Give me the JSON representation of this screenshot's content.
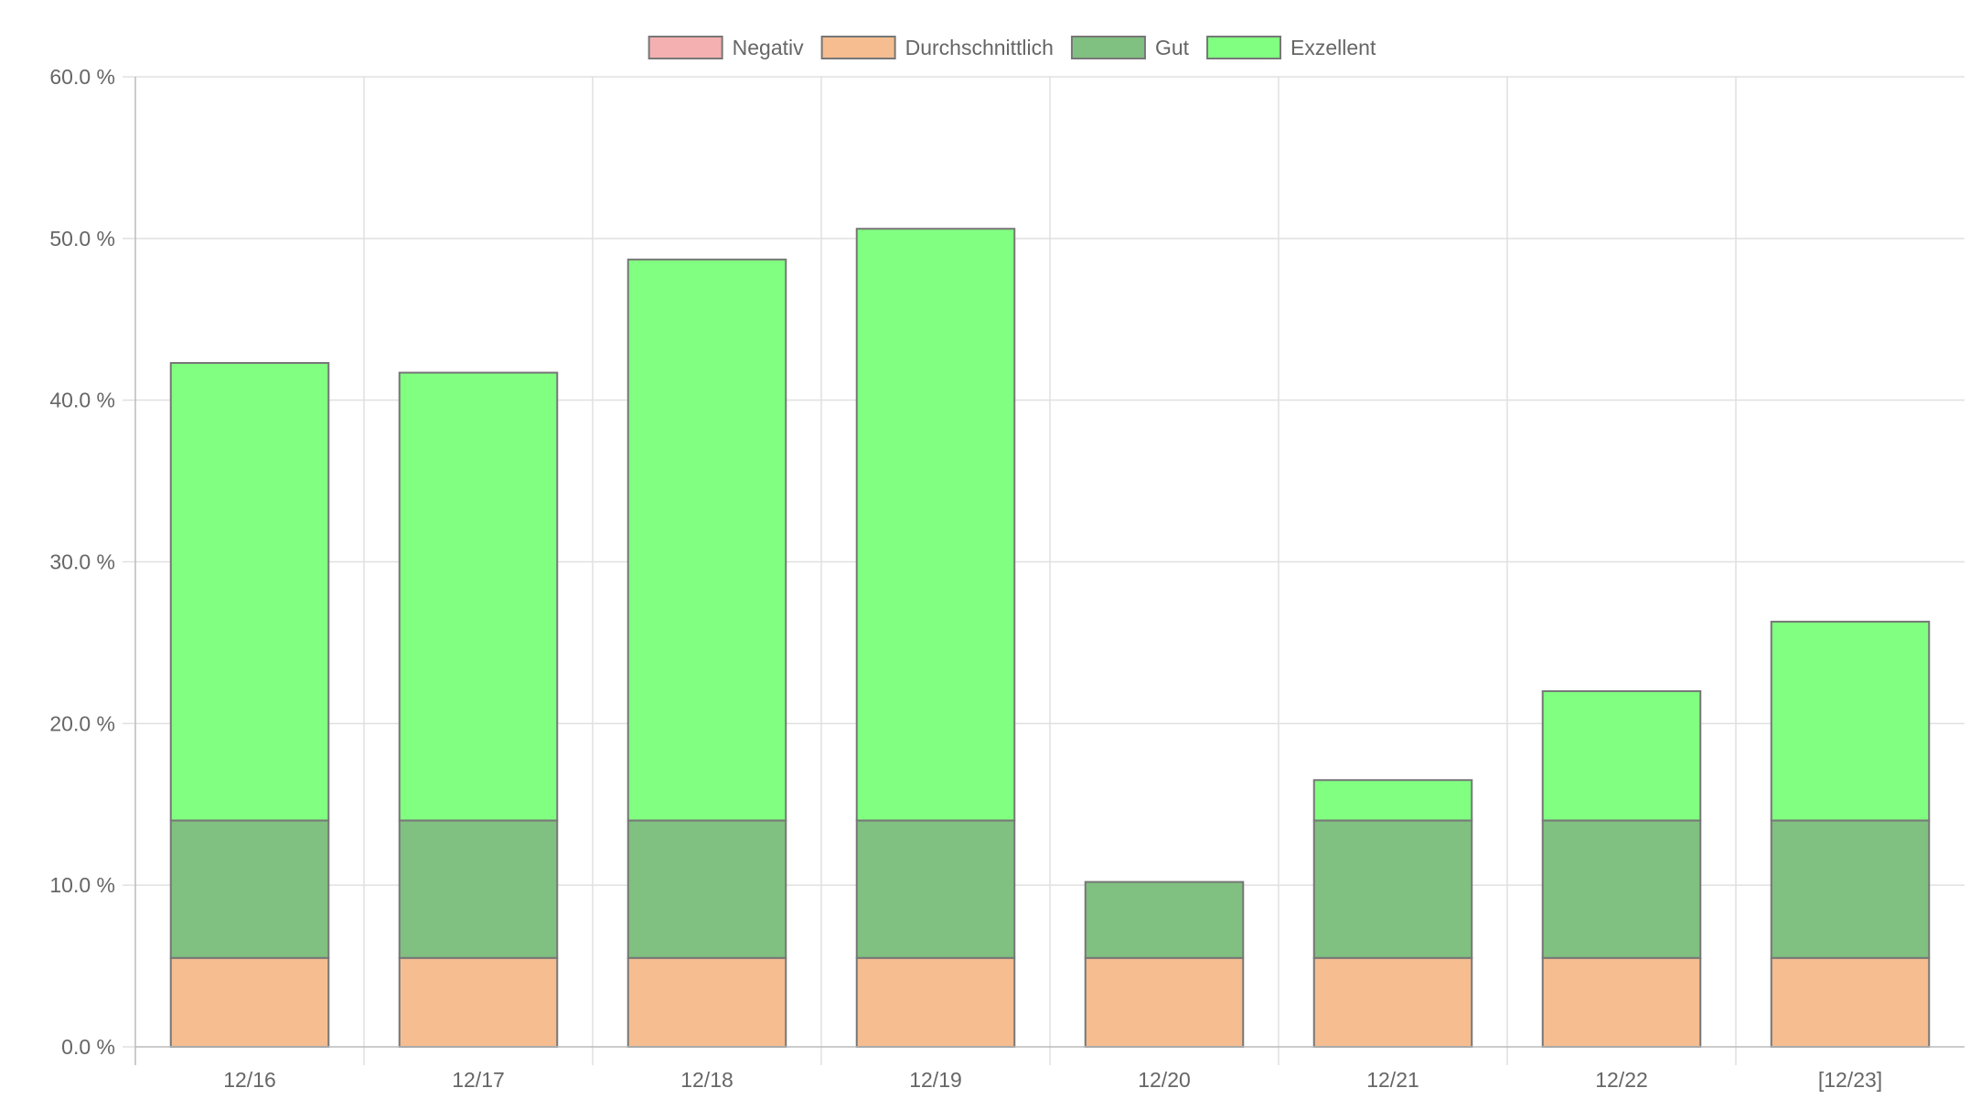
{
  "chart_data": {
    "type": "bar",
    "stacked": true,
    "categories": [
      "12/16",
      "12/17",
      "12/18",
      "12/19",
      "12/20",
      "12/21",
      "12/22",
      "[12/23]"
    ],
    "series": [
      {
        "name": "Negativ",
        "color": "#f4b0b0",
        "values": [
          0,
          0,
          0,
          0,
          0,
          0,
          0,
          0
        ]
      },
      {
        "name": "Durchschnittlich",
        "color": "#f5bd90",
        "values": [
          5.5,
          5.5,
          5.5,
          5.5,
          5.5,
          5.5,
          5.5,
          5.5
        ]
      },
      {
        "name": "Gut",
        "color": "#80c080",
        "values": [
          8.5,
          8.5,
          8.5,
          8.5,
          4.7,
          8.5,
          8.5,
          8.5
        ]
      },
      {
        "name": "Exzellent",
        "color": "#80ff80",
        "values": [
          28.3,
          27.7,
          34.7,
          36.6,
          0,
          2.5,
          8.0,
          12.3
        ]
      }
    ],
    "y_ticks": [
      "0.0 %",
      "10.0 %",
      "20.0 %",
      "30.0 %",
      "40.0 %",
      "50.0 %",
      "60.0 %"
    ],
    "ylim": [
      0,
      60
    ],
    "grid": true,
    "legend_position": "top",
    "border_color": "#777777",
    "grid_color": "#e0e0e0",
    "axis_color": "#bbbbbb",
    "text_color": "#666666"
  }
}
